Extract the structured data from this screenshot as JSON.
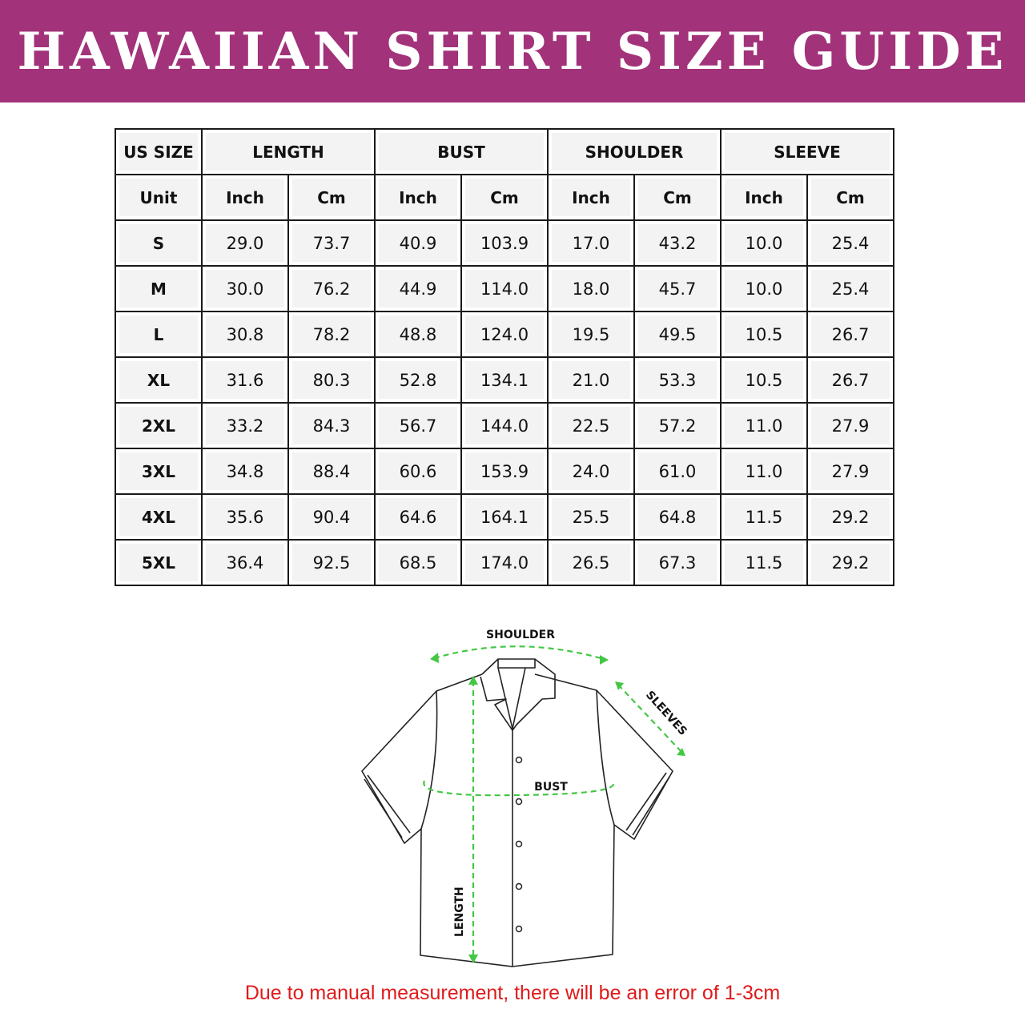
{
  "title": "HAWAIIAN SHIRT SIZE GUIDE",
  "colors": {
    "banner": "#a2327a",
    "note": "#e01b1b",
    "measure_lines": "#44c744"
  },
  "table": {
    "size_header": "US SIZE",
    "groups": [
      "LENGTH",
      "BUST",
      "SHOULDER",
      "SLEEVE"
    ],
    "unit_label": "Unit",
    "units": [
      "Inch",
      "Cm",
      "Inch",
      "Cm",
      "Inch",
      "Cm",
      "Inch",
      "Cm"
    ],
    "rows": [
      [
        "S",
        "29.0",
        "73.7",
        "40.9",
        "103.9",
        "17.0",
        "43.2",
        "10.0",
        "25.4"
      ],
      [
        "M",
        "30.0",
        "76.2",
        "44.9",
        "114.0",
        "18.0",
        "45.7",
        "10.0",
        "25.4"
      ],
      [
        "L",
        "30.8",
        "78.2",
        "48.8",
        "124.0",
        "19.5",
        "49.5",
        "10.5",
        "26.7"
      ],
      [
        "XL",
        "31.6",
        "80.3",
        "52.8",
        "134.1",
        "21.0",
        "53.3",
        "10.5",
        "26.7"
      ],
      [
        "2XL",
        "33.2",
        "84.3",
        "56.7",
        "144.0",
        "22.5",
        "57.2",
        "11.0",
        "27.9"
      ],
      [
        "3XL",
        "34.8",
        "88.4",
        "60.6",
        "153.9",
        "24.0",
        "61.0",
        "11.0",
        "27.9"
      ],
      [
        "4XL",
        "35.6",
        "90.4",
        "64.6",
        "164.1",
        "25.5",
        "64.8",
        "11.5",
        "29.2"
      ],
      [
        "5XL",
        "36.4",
        "92.5",
        "68.5",
        "174.0",
        "26.5",
        "67.3",
        "11.5",
        "29.2"
      ]
    ]
  },
  "diagram": {
    "shoulder": "SHOULDER",
    "sleeves": "SLEEVES",
    "bust": "BUST",
    "length": "LENGTH"
  },
  "note": "Due to manual measurement, there will be an error of 1-3cm"
}
